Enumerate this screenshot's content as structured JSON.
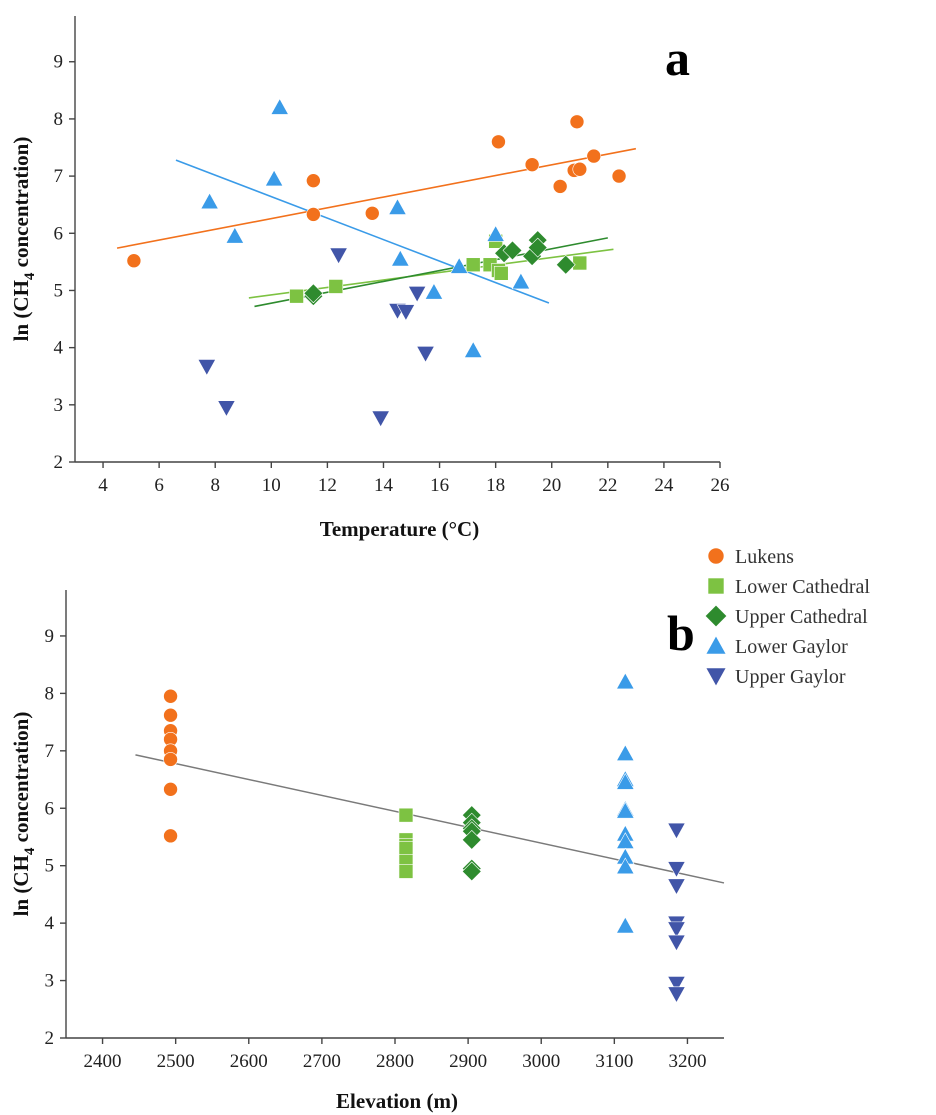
{
  "series_styles": [
    {
      "name": "Lukens",
      "marker": "circle",
      "color": "#f2711c"
    },
    {
      "name": "Lower Cathedral",
      "marker": "square",
      "color": "#7dc242"
    },
    {
      "name": "Upper Cathedral",
      "marker": "diamond",
      "color": "#2e8b2e"
    },
    {
      "name": "Lower Gaylor",
      "marker": "triangle-up",
      "color": "#3a9be8"
    },
    {
      "name": "Upper Gaylor",
      "marker": "triangle-down",
      "color": "#4155a8"
    }
  ],
  "chart_data": [
    {
      "type": "scatter",
      "panel": "a",
      "xlabel": "Temperature (°C)",
      "ylabel_parts": [
        "ln (CH",
        "4",
        " concentration)"
      ],
      "xlim": [
        3,
        26
      ],
      "ylim": [
        2,
        9.8
      ],
      "xticks": [
        4,
        6,
        8,
        10,
        12,
        14,
        16,
        18,
        20,
        22,
        24,
        26
      ],
      "yticks": [
        2,
        3,
        4,
        5,
        6,
        7,
        8,
        9
      ],
      "grid": false,
      "series": [
        {
          "name": "Lukens",
          "points": [
            [
              5.1,
              5.52
            ],
            [
              11.5,
              6.92
            ],
            [
              11.5,
              6.33
            ],
            [
              13.6,
              6.35
            ],
            [
              18.1,
              7.6
            ],
            [
              19.3,
              7.2
            ],
            [
              20.3,
              6.82
            ],
            [
              20.8,
              7.1
            ],
            [
              21.0,
              7.12
            ],
            [
              20.9,
              7.95
            ],
            [
              21.5,
              7.35
            ],
            [
              22.4,
              7.0
            ]
          ],
          "fit": [
            [
              4.5,
              5.74
            ],
            [
              23,
              7.48
            ]
          ]
        },
        {
          "name": "Lower Cathedral",
          "points": [
            [
              10.9,
              4.9
            ],
            [
              12.3,
              5.07
            ],
            [
              17.2,
              5.45
            ],
            [
              17.8,
              5.45
            ],
            [
              18.0,
              5.86
            ],
            [
              18.1,
              5.35
            ],
            [
              18.2,
              5.3
            ],
            [
              21.0,
              5.48
            ]
          ],
          "fit": [
            [
              9.2,
              4.87
            ],
            [
              22.2,
              5.72
            ]
          ]
        },
        {
          "name": "Upper Cathedral",
          "points": [
            [
              11.5,
              4.9
            ],
            [
              11.5,
              4.95
            ],
            [
              18.3,
              5.65
            ],
            [
              18.6,
              5.7
            ],
            [
              19.3,
              5.6
            ],
            [
              19.5,
              5.88
            ],
            [
              19.5,
              5.75
            ],
            [
              20.5,
              5.45
            ]
          ],
          "fit": [
            [
              9.4,
              4.72
            ],
            [
              22.0,
              5.92
            ]
          ]
        },
        {
          "name": "Lower Gaylor",
          "points": [
            [
              10.3,
              8.2
            ],
            [
              10.1,
              6.95
            ],
            [
              7.8,
              6.55
            ],
            [
              8.7,
              5.95
            ],
            [
              14.5,
              6.45
            ],
            [
              14.6,
              5.55
            ],
            [
              15.8,
              4.97
            ],
            [
              16.7,
              5.42
            ],
            [
              17.2,
              3.95
            ],
            [
              18.0,
              5.98
            ],
            [
              18.9,
              5.15
            ]
          ],
          "fit": [
            [
              6.6,
              7.28
            ],
            [
              19.9,
              4.78
            ]
          ]
        },
        {
          "name": "Upper Gaylor",
          "points": [
            [
              7.7,
              3.67
            ],
            [
              8.4,
              2.95
            ],
            [
              12.4,
              5.62
            ],
            [
              13.9,
              2.77
            ],
            [
              14.5,
              4.65
            ],
            [
              14.8,
              4.63
            ],
            [
              15.2,
              4.95
            ],
            [
              15.5,
              3.9
            ]
          ]
        }
      ]
    },
    {
      "type": "scatter",
      "panel": "b",
      "xlabel": "Elevation (m)",
      "ylabel_parts": [
        "ln (CH",
        "4",
        " concentration)"
      ],
      "xlim": [
        2350,
        3250
      ],
      "ylim": [
        2,
        9.8
      ],
      "xticks": [
        2400,
        2500,
        2600,
        2700,
        2800,
        2900,
        3000,
        3100,
        3200
      ],
      "yticks": [
        2,
        3,
        4,
        5,
        6,
        7,
        8,
        9
      ],
      "grid": false,
      "fit": [
        [
          2445,
          6.93
        ],
        [
          3250,
          4.7
        ]
      ],
      "series": [
        {
          "name": "Lukens",
          "points": [
            [
              2493,
              7.95
            ],
            [
              2493,
              7.62
            ],
            [
              2493,
              7.35
            ],
            [
              2493,
              7.2
            ],
            [
              2493,
              7.0
            ],
            [
              2493,
              6.85
            ],
            [
              2493,
              6.33
            ],
            [
              2493,
              5.52
            ]
          ]
        },
        {
          "name": "Lower Cathedral",
          "points": [
            [
              2815,
              5.88
            ],
            [
              2815,
              5.45
            ],
            [
              2815,
              5.35
            ],
            [
              2815,
              5.3
            ],
            [
              2815,
              5.07
            ],
            [
              2815,
              4.9
            ]
          ]
        },
        {
          "name": "Upper Cathedral",
          "points": [
            [
              2905,
              5.88
            ],
            [
              2905,
              5.75
            ],
            [
              2905,
              5.65
            ],
            [
              2905,
              5.6
            ],
            [
              2905,
              5.45
            ],
            [
              2905,
              4.95
            ],
            [
              2905,
              4.9
            ]
          ]
        },
        {
          "name": "Lower Gaylor",
          "points": [
            [
              3115,
              8.2
            ],
            [
              3115,
              6.95
            ],
            [
              3115,
              6.5
            ],
            [
              3115,
              6.45
            ],
            [
              3115,
              5.98
            ],
            [
              3115,
              5.95
            ],
            [
              3115,
              5.55
            ],
            [
              3115,
              5.42
            ],
            [
              3115,
              5.15
            ],
            [
              3115,
              4.98
            ],
            [
              3115,
              3.95
            ]
          ]
        },
        {
          "name": "Upper Gaylor",
          "points": [
            [
              3185,
              5.62
            ],
            [
              3185,
              4.95
            ],
            [
              3185,
              4.65
            ],
            [
              3185,
              4.0
            ],
            [
              3185,
              3.9
            ],
            [
              3185,
              3.67
            ],
            [
              3185,
              2.95
            ],
            [
              3185,
              2.77
            ]
          ]
        }
      ]
    }
  ]
}
